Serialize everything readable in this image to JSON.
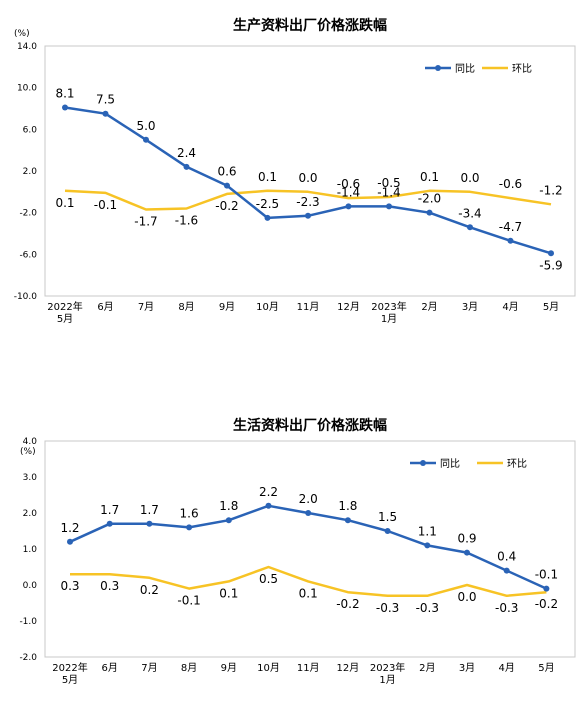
{
  "chart_data": [
    {
      "type": "line",
      "title": "生产资料出厂价格涨跌幅",
      "unit_label": "(%)",
      "categories": [
        [
          "2022年",
          "5月"
        ],
        [
          "6月"
        ],
        [
          "7月"
        ],
        [
          "8月"
        ],
        [
          "9月"
        ],
        [
          "10月"
        ],
        [
          "11月"
        ],
        [
          "12月"
        ],
        [
          "2023年",
          "1月"
        ],
        [
          "2月"
        ],
        [
          "3月"
        ],
        [
          "4月"
        ],
        [
          "5月"
        ]
      ],
      "y_ticks": [
        "14.0",
        "10.0",
        "6.0",
        "2.0",
        "-2.0",
        "-6.0",
        "-10.0"
      ],
      "ylim": [
        -10,
        14
      ],
      "grid": false,
      "legend_position": "top-right",
      "series": [
        {
          "name": "同比",
          "color": "#2a63b6",
          "values": [
            8.1,
            7.5,
            5.0,
            2.4,
            0.6,
            -2.5,
            -2.3,
            -1.4,
            -1.4,
            -2.0,
            -3.4,
            -4.7,
            -5.9
          ],
          "labels": [
            "8.1",
            "7.5",
            "5.0",
            "2.4",
            "0.6",
            "-2.5",
            "-2.3",
            "-1.4",
            "-1.4",
            "-2.0",
            "-3.4",
            "-4.7",
            "-5.9"
          ]
        },
        {
          "name": "环比",
          "color": "#f7c325",
          "values": [
            0.1,
            -0.1,
            -1.7,
            -1.6,
            -0.2,
            0.1,
            0.0,
            -0.6,
            -0.5,
            0.1,
            0.0,
            -0.6,
            -1.2
          ],
          "labels": [
            "0.1",
            "-0.1",
            "-1.7",
            "-1.6",
            "-0.2",
            "0.1",
            "0.0",
            "-0.6",
            "-0.5",
            "0.1",
            "0.0",
            "-0.6",
            "-1.2"
          ]
        }
      ]
    },
    {
      "type": "line",
      "title": "生活资料出厂价格涨跌幅",
      "unit_label": "(%)",
      "categories": [
        [
          "2022年",
          "5月"
        ],
        [
          "6月"
        ],
        [
          "7月"
        ],
        [
          "8月"
        ],
        [
          "9月"
        ],
        [
          "10月"
        ],
        [
          "11月"
        ],
        [
          "12月"
        ],
        [
          "2023年",
          "1月"
        ],
        [
          "2月"
        ],
        [
          "3月"
        ],
        [
          "4月"
        ],
        [
          "5月"
        ]
      ],
      "y_ticks": [
        "4.0",
        "3.0",
        "2.0",
        "1.0",
        "0.0",
        "-1.0",
        "-2.0"
      ],
      "ylim": [
        -2,
        4
      ],
      "grid": false,
      "legend_position": "top-right",
      "series": [
        {
          "name": "同比",
          "color": "#2a63b6",
          "values": [
            1.2,
            1.7,
            1.7,
            1.6,
            1.8,
            2.2,
            2.0,
            1.8,
            1.5,
            1.1,
            0.9,
            0.4,
            -0.1
          ],
          "labels": [
            "1.2",
            "1.7",
            "1.7",
            "1.6",
            "1.8",
            "2.2",
            "2.0",
            "1.8",
            "1.5",
            "1.1",
            "0.9",
            "0.4",
            "-0.1"
          ]
        },
        {
          "name": "环比",
          "color": "#f7c325",
          "values": [
            0.3,
            0.3,
            0.2,
            -0.1,
            0.1,
            0.5,
            0.1,
            -0.2,
            -0.3,
            -0.3,
            0.0,
            -0.3,
            -0.2
          ],
          "labels": [
            "0.3",
            "0.3",
            "0.2",
            "-0.1",
            "0.1",
            "0.5",
            "0.1",
            "-0.2",
            "-0.3",
            "-0.3",
            "0.0",
            "-0.3",
            "-0.2"
          ]
        }
      ]
    }
  ]
}
